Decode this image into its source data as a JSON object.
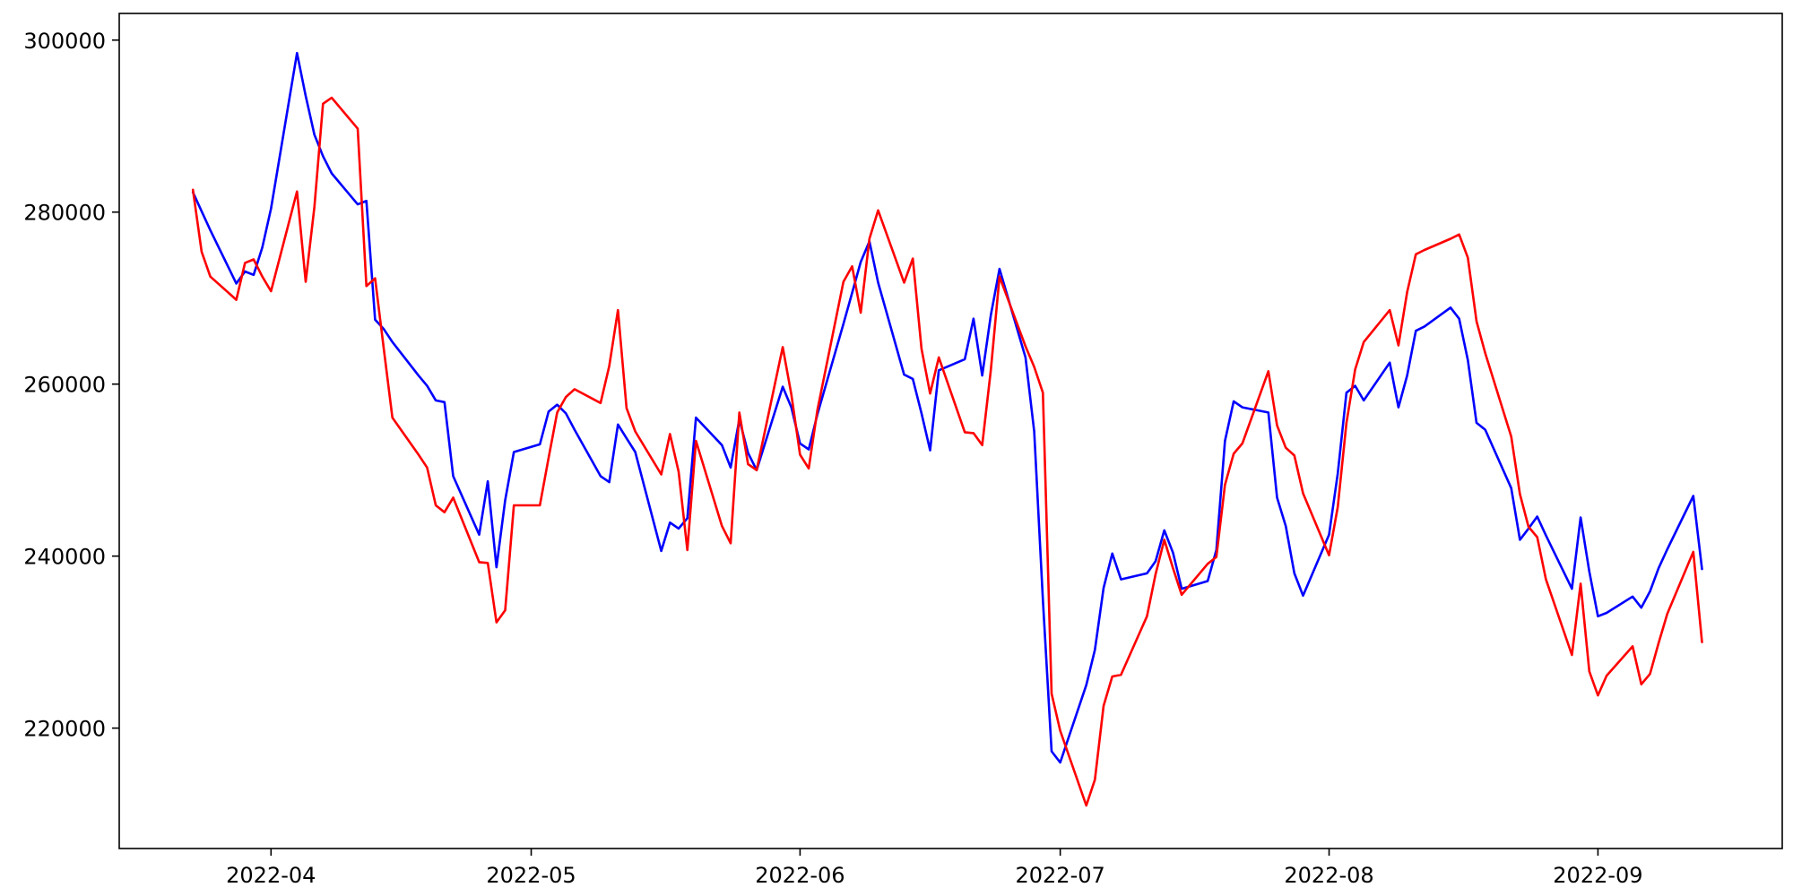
{
  "figure": {
    "background_color": "#ffffff",
    "frame_color": "#000000"
  },
  "chart_data": {
    "type": "line",
    "title": "",
    "xlabel": "",
    "ylabel": "",
    "grid": false,
    "legend_position": "none",
    "x_tick_labels": [
      "2022-04",
      "2022-05",
      "2022-06",
      "2022-07",
      "2022-08",
      "2022-09"
    ],
    "x_tick_dates": [
      "2022-04-01",
      "2022-05-01",
      "2022-06-01",
      "2022-07-01",
      "2022-08-01",
      "2022-09-01"
    ],
    "y_ticks": [
      220000,
      240000,
      260000,
      280000,
      300000
    ],
    "x_range": [
      "2022-03-14T12:00:00Z",
      "2022-09-22T06:00:00Z"
    ],
    "y_range": [
      206000,
      303100
    ],
    "dates": [
      "2022-03-23",
      "2022-03-24",
      "2022-03-25",
      "2022-03-28",
      "2022-03-29",
      "2022-03-30",
      "2022-03-31",
      "2022-04-01",
      "2022-04-04",
      "2022-04-05",
      "2022-04-06",
      "2022-04-07",
      "2022-04-08",
      "2022-04-11",
      "2022-04-12",
      "2022-04-13",
      "2022-04-14",
      "2022-04-15",
      "2022-04-18",
      "2022-04-19",
      "2022-04-20",
      "2022-04-21",
      "2022-04-22",
      "2022-04-25",
      "2022-04-26",
      "2022-04-27",
      "2022-04-28",
      "2022-04-29",
      "2022-05-02",
      "2022-05-03",
      "2022-05-04",
      "2022-05-05",
      "2022-05-06",
      "2022-05-09",
      "2022-05-10",
      "2022-05-11",
      "2022-05-12",
      "2022-05-13",
      "2022-05-16",
      "2022-05-17",
      "2022-05-18",
      "2022-05-19",
      "2022-05-20",
      "2022-05-23",
      "2022-05-24",
      "2022-05-25",
      "2022-05-26",
      "2022-05-27",
      "2022-05-30",
      "2022-05-31",
      "2022-06-01",
      "2022-06-02",
      "2022-06-03",
      "2022-06-06",
      "2022-06-07",
      "2022-06-08",
      "2022-06-09",
      "2022-06-10",
      "2022-06-13",
      "2022-06-14",
      "2022-06-15",
      "2022-06-16",
      "2022-06-17",
      "2022-06-20",
      "2022-06-21",
      "2022-06-22",
      "2022-06-23",
      "2022-06-24",
      "2022-06-27",
      "2022-06-28",
      "2022-06-29",
      "2022-06-30",
      "2022-07-01",
      "2022-07-04",
      "2022-07-05",
      "2022-07-06",
      "2022-07-07",
      "2022-07-08",
      "2022-07-11",
      "2022-07-12",
      "2022-07-13",
      "2022-07-14",
      "2022-07-15",
      "2022-07-18",
      "2022-07-19",
      "2022-07-20",
      "2022-07-21",
      "2022-07-22",
      "2022-07-25",
      "2022-07-26",
      "2022-07-27",
      "2022-07-28",
      "2022-07-29",
      "2022-08-01",
      "2022-08-02",
      "2022-08-03",
      "2022-08-04",
      "2022-08-05",
      "2022-08-08",
      "2022-08-09",
      "2022-08-10",
      "2022-08-11",
      "2022-08-12",
      "2022-08-15",
      "2022-08-16",
      "2022-08-17",
      "2022-08-18",
      "2022-08-19",
      "2022-08-22",
      "2022-08-23",
      "2022-08-24",
      "2022-08-25",
      "2022-08-26",
      "2022-08-29",
      "2022-08-30",
      "2022-08-31",
      "2022-09-01",
      "2022-09-02",
      "2022-09-05",
      "2022-09-06",
      "2022-09-07",
      "2022-09-08",
      "2022-09-09",
      "2022-09-12",
      "2022-09-13"
    ],
    "series": [
      {
        "name": "series-blue",
        "color": "#0000ff",
        "line_width": 2.6,
        "values": [
          282300,
          280100,
          277900,
          271700,
          273100,
          272700,
          275900,
          280400,
          298500,
          293500,
          289000,
          286500,
          284500,
          280900,
          281300,
          267500,
          266400,
          264900,
          261000,
          259800,
          258100,
          257900,
          249300,
          242500,
          248700,
          238700,
          246500,
          252100,
          253000,
          256800,
          257600,
          256600,
          254700,
          249300,
          248600,
          255300,
          253700,
          252100,
          240600,
          243900,
          243200,
          244400,
          256100,
          252900,
          250300,
          255900,
          252000,
          250000,
          259700,
          257300,
          253100,
          252400,
          256500,
          267000,
          270600,
          274200,
          276600,
          271800,
          261100,
          260600,
          256600,
          252300,
          261600,
          262900,
          267600,
          261000,
          268000,
          273400,
          263100,
          254500,
          234900,
          217300,
          216000,
          225000,
          229100,
          236300,
          240300,
          237300,
          238000,
          239400,
          243000,
          240400,
          236200,
          237100,
          240700,
          253400,
          258000,
          257300,
          256700,
          246800,
          243500,
          238000,
          235400,
          242500,
          249600,
          259000,
          259800,
          258100,
          262500,
          257300,
          261000,
          266200,
          266700,
          268900,
          267600,
          262800,
          255500,
          254700,
          247900,
          241900,
          243200,
          244600,
          242400,
          236200,
          244500,
          238200,
          233000,
          233400,
          235300,
          234000,
          235900,
          238600,
          240800,
          247000,
          238500
        ]
      },
      {
        "name": "series-red",
        "color": "#ff0000",
        "line_width": 2.6,
        "values": [
          282600,
          275400,
          272500,
          269800,
          274100,
          274500,
          272500,
          270800,
          282400,
          271900,
          280600,
          292600,
          293300,
          289700,
          271400,
          272300,
          264100,
          256100,
          251800,
          250300,
          245900,
          245100,
          246800,
          239300,
          239200,
          232300,
          233700,
          245900,
          245900,
          251400,
          256700,
          258500,
          259400,
          257800,
          262100,
          268600,
          257200,
          254500,
          249500,
          254200,
          249800,
          240700,
          253400,
          243500,
          241500,
          256700,
          250700,
          250000,
          264300,
          258800,
          251800,
          250200,
          257000,
          271900,
          273700,
          268300,
          276900,
          280200,
          271800,
          274600,
          264100,
          258900,
          263100,
          254400,
          254300,
          252900,
          261600,
          272500,
          264400,
          262000,
          259000,
          224000,
          219700,
          211000,
          214000,
          222600,
          226000,
          226200,
          233000,
          237900,
          241900,
          238600,
          235500,
          239100,
          239900,
          248300,
          251900,
          253100,
          261500,
          255200,
          252600,
          251700,
          247300,
          240100,
          245700,
          255500,
          261700,
          264900,
          268600,
          264500,
          270700,
          275100,
          275600,
          276900,
          277400,
          274700,
          267300,
          263600,
          253900,
          247200,
          243400,
          242200,
          237300,
          228500,
          236800,
          226600,
          223800,
          226100,
          229500,
          225100,
          226300,
          229900,
          233300,
          240500,
          230000
        ]
      }
    ]
  }
}
